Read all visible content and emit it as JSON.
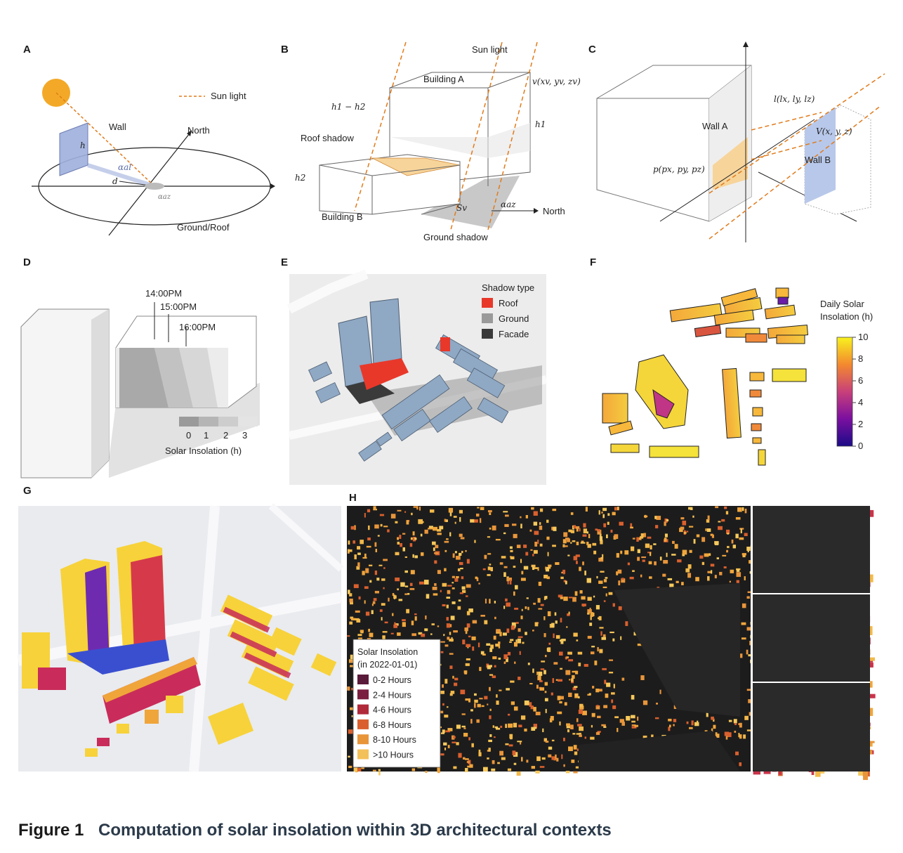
{
  "panels": {
    "A": {
      "letter": "A",
      "sun_light": "Sun light",
      "wall": "Wall",
      "north": "North",
      "ground_roof": "Ground/Roof",
      "h": "h",
      "d": "d",
      "alpha_al": "αal",
      "alpha_az": "αaz"
    },
    "B": {
      "letter": "B",
      "sun_light": "Sun light",
      "building_a": "Building A",
      "building_b": "Building B",
      "roof_shadow": "Roof shadow",
      "ground_shadow": "Ground shadow",
      "north": "North",
      "h1_minus_h2": "h1 − h2",
      "h1": "h1",
      "h2": "h2",
      "v": "v(xv, yv, zv)",
      "sv": "Sv",
      "alpha_az": "αaz"
    },
    "C": {
      "letter": "C",
      "wall_a": "Wall A",
      "wall_b": "Wall B",
      "l": "l(lx, ly, lz)",
      "V": "V(x, y, z)",
      "p": "p(px, py, pz)"
    },
    "D": {
      "letter": "D",
      "times": [
        "14:00PM",
        "15:00PM",
        "16:00PM"
      ],
      "scale_ticks": [
        "0",
        "1",
        "2",
        "3"
      ],
      "scale_label": "Solar Insolation (h)"
    },
    "E": {
      "letter": "E",
      "legend_title": "Shadow type",
      "legend": [
        {
          "label": "Roof",
          "color": "#e8382a"
        },
        {
          "label": "Ground",
          "color": "#9a9a9a"
        },
        {
          "label": "Facade",
          "color": "#3a3a3a"
        }
      ]
    },
    "F": {
      "letter": "F",
      "colorbar_title_1": "Daily Solar",
      "colorbar_title_2": "Insolation (h)",
      "colorbar_ticks": [
        "10",
        "8",
        "6",
        "4",
        "2",
        "0"
      ]
    },
    "G": {
      "letter": "G"
    },
    "H": {
      "letter": "H",
      "legend_title_1": "Solar Insolation",
      "legend_title_2": "(in 2022-01-01)",
      "legend": [
        {
          "label": "0-2 Hours",
          "color": "#5a1a3a"
        },
        {
          "label": "2-4 Hours",
          "color": "#7a1f3f"
        },
        {
          "label": "4-6 Hours",
          "color": "#b02a3a"
        },
        {
          "label": "6-8 Hours",
          "color": "#d9602e"
        },
        {
          "label": "8-10 Hours",
          "color": "#e8953a"
        },
        {
          "label": ">10 Hours",
          "color": "#f3c15a"
        }
      ]
    }
  },
  "caption": {
    "number": "Figure 1",
    "title": "Computation of solar insolation within 3D architectural contexts"
  }
}
